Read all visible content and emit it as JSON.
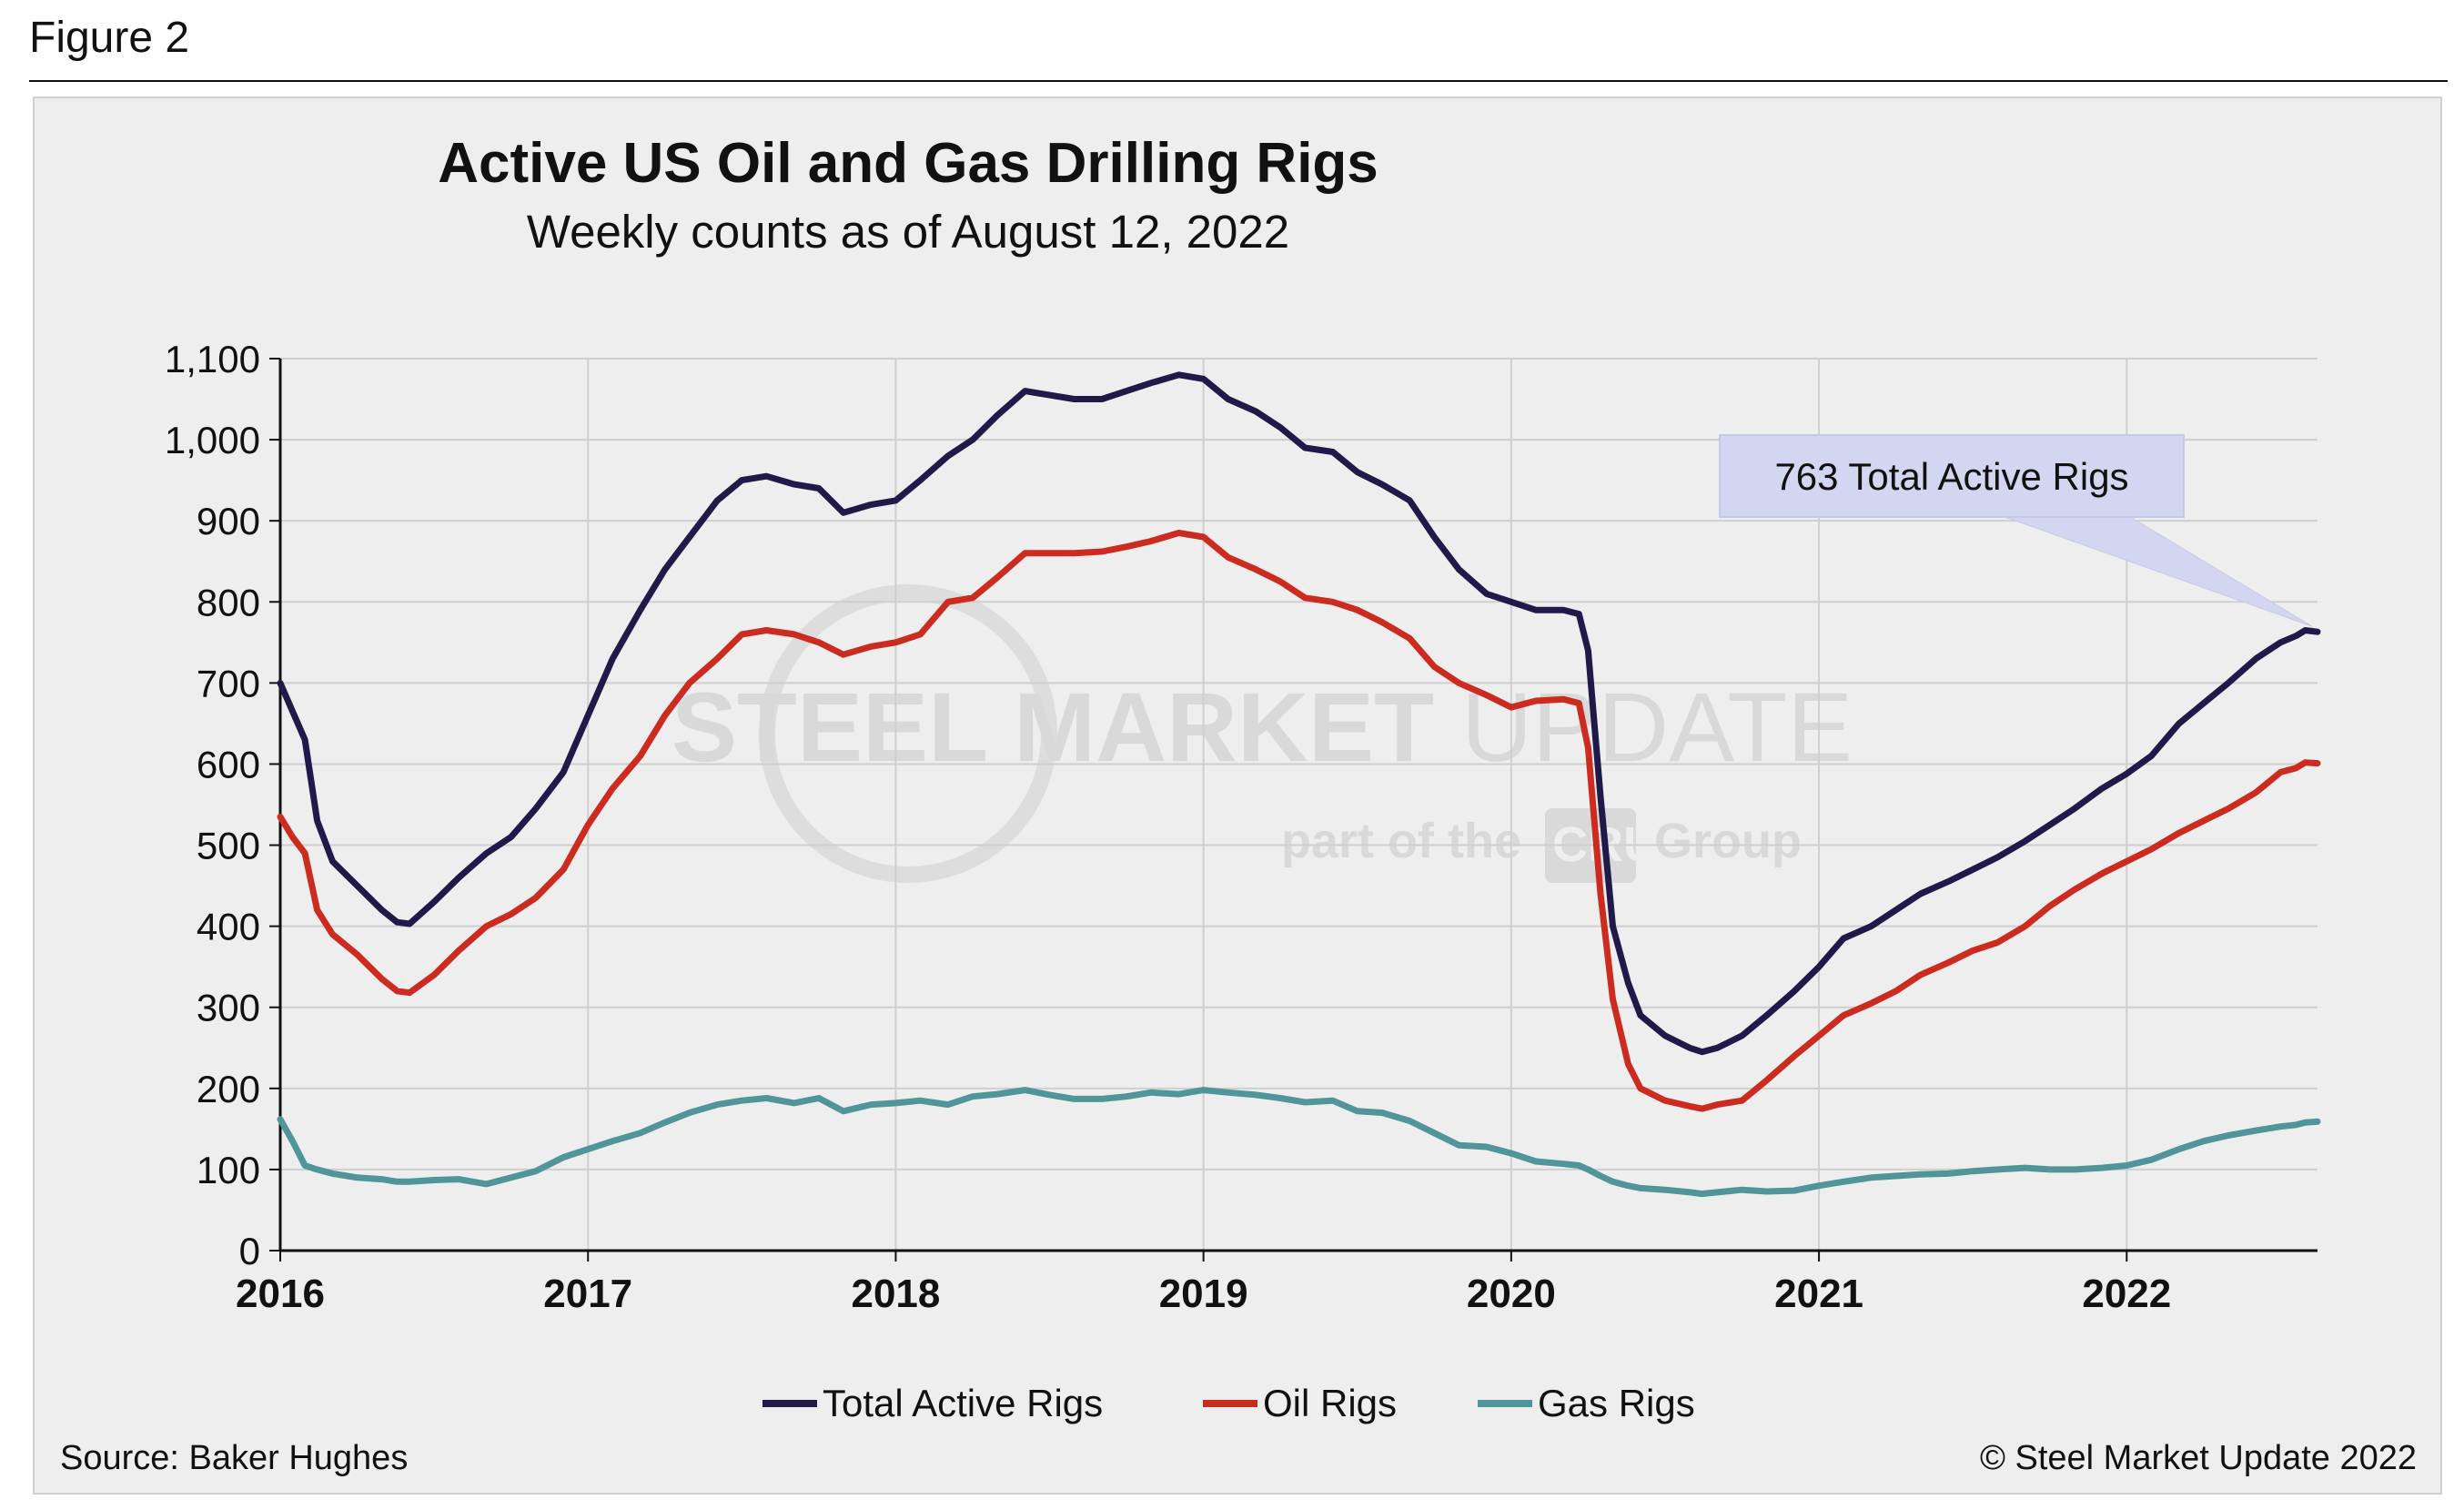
{
  "figure_label": "Figure 2",
  "source": "Source: Baker Hughes",
  "copyright": "© Steel Market Update 2022",
  "watermark": {
    "line1_a": "STEEL MARKET ",
    "line1_b": "UPDATE",
    "line2_a": "part of the",
    "line2_logo": "CRU",
    "line2_b": "Group"
  },
  "colors": {
    "total": "#1f1a4a",
    "oil": "#cc2b20",
    "gas": "#4f9599",
    "grid": "#cfcfcf",
    "callout_fill": "#d3d6f1"
  },
  "chart_data": {
    "type": "line",
    "title": "Active US Oil and Gas Drilling Rigs",
    "subtitle": "Weekly counts as of August 12, 2022",
    "xlabel": "",
    "ylabel": "",
    "xlim": [
      2016.0,
      2022.62
    ],
    "ylim": [
      0,
      1100
    ],
    "x_ticks": [
      2016,
      2017,
      2018,
      2019,
      2020,
      2021,
      2022
    ],
    "x_tick_labels": [
      "2016",
      "2017",
      "2018",
      "2019",
      "2020",
      "2021",
      "2022"
    ],
    "y_ticks": [
      0,
      100,
      200,
      300,
      400,
      500,
      600,
      700,
      800,
      900,
      1000,
      1100
    ],
    "y_tick_labels": [
      "0",
      "100",
      "200",
      "300",
      "400",
      "500",
      "600",
      "700",
      "800",
      "900",
      "1,000",
      "1,100"
    ],
    "grid": true,
    "legend_position": "bottom",
    "annotation": {
      "text": "763 Total Active Rigs",
      "x": 2022.62,
      "y": 763
    },
    "series": [
      {
        "name": "Total Active Rigs",
        "color": "#1f1a4a",
        "points": [
          [
            2016.0,
            700
          ],
          [
            2016.04,
            665
          ],
          [
            2016.08,
            630
          ],
          [
            2016.12,
            530
          ],
          [
            2016.17,
            480
          ],
          [
            2016.25,
            450
          ],
          [
            2016.33,
            420
          ],
          [
            2016.38,
            405
          ],
          [
            2016.42,
            403
          ],
          [
            2016.5,
            430
          ],
          [
            2016.58,
            460
          ],
          [
            2016.67,
            490
          ],
          [
            2016.75,
            510
          ],
          [
            2016.83,
            545
          ],
          [
            2016.92,
            590
          ],
          [
            2017.0,
            660
          ],
          [
            2017.08,
            730
          ],
          [
            2017.17,
            790
          ],
          [
            2017.25,
            840
          ],
          [
            2017.33,
            880
          ],
          [
            2017.42,
            925
          ],
          [
            2017.5,
            950
          ],
          [
            2017.58,
            955
          ],
          [
            2017.67,
            945
          ],
          [
            2017.75,
            940
          ],
          [
            2017.83,
            910
          ],
          [
            2017.92,
            920
          ],
          [
            2018.0,
            925
          ],
          [
            2018.08,
            950
          ],
          [
            2018.17,
            980
          ],
          [
            2018.25,
            1000
          ],
          [
            2018.33,
            1030
          ],
          [
            2018.42,
            1060
          ],
          [
            2018.5,
            1055
          ],
          [
            2018.58,
            1050
          ],
          [
            2018.67,
            1050
          ],
          [
            2018.75,
            1060
          ],
          [
            2018.83,
            1070
          ],
          [
            2018.92,
            1080
          ],
          [
            2019.0,
            1075
          ],
          [
            2019.08,
            1050
          ],
          [
            2019.17,
            1035
          ],
          [
            2019.25,
            1015
          ],
          [
            2019.33,
            990
          ],
          [
            2019.42,
            985
          ],
          [
            2019.5,
            960
          ],
          [
            2019.58,
            945
          ],
          [
            2019.67,
            925
          ],
          [
            2019.75,
            880
          ],
          [
            2019.83,
            840
          ],
          [
            2019.92,
            810
          ],
          [
            2020.0,
            800
          ],
          [
            2020.08,
            790
          ],
          [
            2020.17,
            790
          ],
          [
            2020.22,
            785
          ],
          [
            2020.25,
            740
          ],
          [
            2020.29,
            560
          ],
          [
            2020.33,
            400
          ],
          [
            2020.38,
            330
          ],
          [
            2020.42,
            290
          ],
          [
            2020.5,
            265
          ],
          [
            2020.58,
            250
          ],
          [
            2020.62,
            245
          ],
          [
            2020.67,
            250
          ],
          [
            2020.75,
            265
          ],
          [
            2020.83,
            290
          ],
          [
            2020.92,
            320
          ],
          [
            2021.0,
            350
          ],
          [
            2021.08,
            385
          ],
          [
            2021.17,
            400
          ],
          [
            2021.25,
            420
          ],
          [
            2021.33,
            440
          ],
          [
            2021.42,
            455
          ],
          [
            2021.5,
            470
          ],
          [
            2021.58,
            485
          ],
          [
            2021.67,
            505
          ],
          [
            2021.75,
            525
          ],
          [
            2021.83,
            545
          ],
          [
            2021.92,
            570
          ],
          [
            2022.0,
            588
          ],
          [
            2022.08,
            610
          ],
          [
            2022.17,
            650
          ],
          [
            2022.25,
            675
          ],
          [
            2022.33,
            700
          ],
          [
            2022.42,
            730
          ],
          [
            2022.5,
            750
          ],
          [
            2022.55,
            758
          ],
          [
            2022.58,
            765
          ],
          [
            2022.62,
            763
          ]
        ]
      },
      {
        "name": "Oil Rigs",
        "color": "#cc2b20",
        "points": [
          [
            2016.0,
            535
          ],
          [
            2016.04,
            510
          ],
          [
            2016.08,
            490
          ],
          [
            2016.12,
            420
          ],
          [
            2016.17,
            390
          ],
          [
            2016.25,
            365
          ],
          [
            2016.33,
            335
          ],
          [
            2016.38,
            320
          ],
          [
            2016.42,
            318
          ],
          [
            2016.5,
            340
          ],
          [
            2016.58,
            370
          ],
          [
            2016.67,
            400
          ],
          [
            2016.75,
            415
          ],
          [
            2016.83,
            435
          ],
          [
            2016.92,
            470
          ],
          [
            2017.0,
            525
          ],
          [
            2017.08,
            570
          ],
          [
            2017.17,
            610
          ],
          [
            2017.25,
            660
          ],
          [
            2017.33,
            700
          ],
          [
            2017.42,
            730
          ],
          [
            2017.5,
            760
          ],
          [
            2017.58,
            765
          ],
          [
            2017.67,
            760
          ],
          [
            2017.75,
            750
          ],
          [
            2017.83,
            735
          ],
          [
            2017.92,
            745
          ],
          [
            2018.0,
            750
          ],
          [
            2018.08,
            760
          ],
          [
            2018.17,
            800
          ],
          [
            2018.25,
            805
          ],
          [
            2018.33,
            830
          ],
          [
            2018.42,
            860
          ],
          [
            2018.5,
            860
          ],
          [
            2018.58,
            860
          ],
          [
            2018.67,
            862
          ],
          [
            2018.75,
            868
          ],
          [
            2018.83,
            875
          ],
          [
            2018.92,
            885
          ],
          [
            2019.0,
            880
          ],
          [
            2019.08,
            855
          ],
          [
            2019.17,
            840
          ],
          [
            2019.25,
            825
          ],
          [
            2019.33,
            805
          ],
          [
            2019.42,
            800
          ],
          [
            2019.5,
            790
          ],
          [
            2019.58,
            775
          ],
          [
            2019.67,
            755
          ],
          [
            2019.75,
            720
          ],
          [
            2019.83,
            700
          ],
          [
            2019.92,
            685
          ],
          [
            2020.0,
            670
          ],
          [
            2020.08,
            678
          ],
          [
            2020.17,
            680
          ],
          [
            2020.22,
            675
          ],
          [
            2020.25,
            620
          ],
          [
            2020.29,
            440
          ],
          [
            2020.33,
            310
          ],
          [
            2020.38,
            230
          ],
          [
            2020.42,
            200
          ],
          [
            2020.5,
            185
          ],
          [
            2020.58,
            178
          ],
          [
            2020.62,
            175
          ],
          [
            2020.67,
            180
          ],
          [
            2020.75,
            185
          ],
          [
            2020.83,
            210
          ],
          [
            2020.92,
            240
          ],
          [
            2021.0,
            265
          ],
          [
            2021.08,
            290
          ],
          [
            2021.17,
            305
          ],
          [
            2021.25,
            320
          ],
          [
            2021.33,
            340
          ],
          [
            2021.42,
            355
          ],
          [
            2021.5,
            370
          ],
          [
            2021.58,
            380
          ],
          [
            2021.67,
            400
          ],
          [
            2021.75,
            425
          ],
          [
            2021.83,
            445
          ],
          [
            2021.92,
            465
          ],
          [
            2022.0,
            480
          ],
          [
            2022.08,
            495
          ],
          [
            2022.17,
            515
          ],
          [
            2022.25,
            530
          ],
          [
            2022.33,
            545
          ],
          [
            2022.42,
            565
          ],
          [
            2022.5,
            590
          ],
          [
            2022.55,
            595
          ],
          [
            2022.58,
            602
          ],
          [
            2022.62,
            601
          ]
        ]
      },
      {
        "name": "Gas Rigs",
        "color": "#4f9599",
        "points": [
          [
            2016.0,
            162
          ],
          [
            2016.04,
            135
          ],
          [
            2016.08,
            105
          ],
          [
            2016.12,
            100
          ],
          [
            2016.17,
            95
          ],
          [
            2016.25,
            90
          ],
          [
            2016.33,
            88
          ],
          [
            2016.38,
            85
          ],
          [
            2016.42,
            85
          ],
          [
            2016.5,
            87
          ],
          [
            2016.58,
            88
          ],
          [
            2016.67,
            82
          ],
          [
            2016.75,
            90
          ],
          [
            2016.83,
            98
          ],
          [
            2016.92,
            115
          ],
          [
            2017.0,
            125
          ],
          [
            2017.08,
            135
          ],
          [
            2017.17,
            145
          ],
          [
            2017.25,
            158
          ],
          [
            2017.33,
            170
          ],
          [
            2017.42,
            180
          ],
          [
            2017.5,
            185
          ],
          [
            2017.58,
            188
          ],
          [
            2017.67,
            182
          ],
          [
            2017.75,
            188
          ],
          [
            2017.83,
            172
          ],
          [
            2017.92,
            180
          ],
          [
            2018.0,
            182
          ],
          [
            2018.08,
            185
          ],
          [
            2018.17,
            180
          ],
          [
            2018.25,
            190
          ],
          [
            2018.33,
            193
          ],
          [
            2018.42,
            198
          ],
          [
            2018.5,
            192
          ],
          [
            2018.58,
            187
          ],
          [
            2018.67,
            187
          ],
          [
            2018.75,
            190
          ],
          [
            2018.83,
            195
          ],
          [
            2018.92,
            193
          ],
          [
            2019.0,
            198
          ],
          [
            2019.08,
            195
          ],
          [
            2019.17,
            192
          ],
          [
            2019.25,
            188
          ],
          [
            2019.33,
            183
          ],
          [
            2019.42,
            185
          ],
          [
            2019.5,
            172
          ],
          [
            2019.58,
            170
          ],
          [
            2019.67,
            160
          ],
          [
            2019.75,
            145
          ],
          [
            2019.83,
            130
          ],
          [
            2019.92,
            128
          ],
          [
            2020.0,
            120
          ],
          [
            2020.08,
            110
          ],
          [
            2020.17,
            107
          ],
          [
            2020.22,
            105
          ],
          [
            2020.25,
            100
          ],
          [
            2020.29,
            92
          ],
          [
            2020.33,
            85
          ],
          [
            2020.38,
            80
          ],
          [
            2020.42,
            77
          ],
          [
            2020.5,
            75
          ],
          [
            2020.58,
            72
          ],
          [
            2020.62,
            70
          ],
          [
            2020.67,
            72
          ],
          [
            2020.75,
            75
          ],
          [
            2020.83,
            73
          ],
          [
            2020.92,
            74
          ],
          [
            2021.0,
            80
          ],
          [
            2021.08,
            85
          ],
          [
            2021.17,
            90
          ],
          [
            2021.25,
            92
          ],
          [
            2021.33,
            94
          ],
          [
            2021.42,
            95
          ],
          [
            2021.5,
            98
          ],
          [
            2021.58,
            100
          ],
          [
            2021.67,
            102
          ],
          [
            2021.75,
            100
          ],
          [
            2021.83,
            100
          ],
          [
            2021.92,
            102
          ],
          [
            2022.0,
            105
          ],
          [
            2022.08,
            112
          ],
          [
            2022.17,
            125
          ],
          [
            2022.25,
            135
          ],
          [
            2022.33,
            142
          ],
          [
            2022.42,
            148
          ],
          [
            2022.5,
            153
          ],
          [
            2022.55,
            155
          ],
          [
            2022.58,
            158
          ],
          [
            2022.62,
            159
          ]
        ]
      }
    ]
  }
}
